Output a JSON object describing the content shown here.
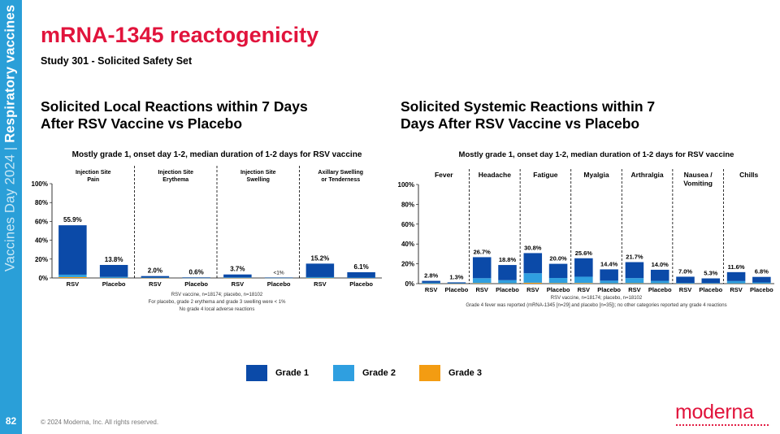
{
  "sidebar": {
    "event_bold": "Respiratory vaccines",
    "event_light": "Vaccines Day 2024 | ",
    "slide_number": "82"
  },
  "title": "mRNA-1345 reactogenicity",
  "subtitle": "Study 301 - Solicited Safety Set",
  "sections": {
    "left_title": "Solicited Local Reactions within 7 Days After RSV Vaccine vs Placebo",
    "right_title": "Solicited Systemic Reactions within 7 Days After RSV Vaccine vs Placebo"
  },
  "legend": [
    {
      "label": "Grade 1",
      "color": "#0b4aa8"
    },
    {
      "label": "Grade 2",
      "color": "#2f9fe0"
    },
    {
      "label": "Grade 3",
      "color": "#f39c12"
    }
  ],
  "copyright": "© 2024 Moderna, Inc. All rights reserved.",
  "logo": "moderna",
  "chart_data": [
    {
      "type": "bar",
      "title": "Mostly grade 1, onset day 1-2, median duration of 1-2 days for RSV vaccine",
      "ylim": [
        0,
        100
      ],
      "yticks": [
        "0%",
        "20%",
        "40%",
        "60%",
        "80%",
        "100%"
      ],
      "groups": [
        {
          "label": "Injection Site Pain",
          "categories": [
            "RSV",
            "Placebo"
          ]
        },
        {
          "label": "Injection Site Erythema",
          "categories": [
            "RSV",
            "Placebo"
          ]
        },
        {
          "label": "Injection Site Swelling",
          "categories": [
            "RSV",
            "Placebo"
          ]
        },
        {
          "label": "Axillary Swelling or Tenderness",
          "categories": [
            "RSV",
            "Placebo"
          ]
        }
      ],
      "totals": [
        55.9,
        13.8,
        2.0,
        0.6,
        3.7,
        0.5,
        15.2,
        6.1
      ],
      "bar_labels": [
        "55.9%",
        "13.8%",
        "2.0%",
        "0.6%",
        "3.7%",
        "<1%",
        "15.2%",
        "6.1%"
      ],
      "series": [
        {
          "name": "Grade 1",
          "values": [
            52.4,
            12.7,
            1.6,
            0.5,
            3.1,
            0.4,
            14.3,
            5.7
          ]
        },
        {
          "name": "Grade 2",
          "values": [
            2.6,
            1.0,
            0.3,
            0.1,
            0.5,
            0.1,
            0.8,
            0.4
          ]
        },
        {
          "name": "Grade 3",
          "values": [
            0.9,
            0.1,
            0.1,
            0.0,
            0.1,
            0.0,
            0.1,
            0.0
          ]
        }
      ],
      "footnotes": [
        "RSV vaccine, n=18174; placebo, n=18102",
        "For placebo, grade 2 erythema and grade 3 swelling were < 1%",
        "No grade 4 local adverse reactions"
      ]
    },
    {
      "type": "bar",
      "title": "Mostly grade 1, onset day 1-2, median duration of 1-2 days for RSV vaccine",
      "ylim": [
        0,
        100
      ],
      "yticks": [
        "0%",
        "20%",
        "40%",
        "60%",
        "80%",
        "100%"
      ],
      "groups": [
        {
          "label": "Fever",
          "categories": [
            "RSV",
            "Placebo"
          ]
        },
        {
          "label": "Headache",
          "categories": [
            "RSV",
            "Placebo"
          ]
        },
        {
          "label": "Fatigue",
          "categories": [
            "RSV",
            "Placebo"
          ]
        },
        {
          "label": "Myalgia",
          "categories": [
            "RSV",
            "Placebo"
          ]
        },
        {
          "label": "Arthralgia",
          "categories": [
            "RSV",
            "Placebo"
          ]
        },
        {
          "label": "Nausea / Vomiting",
          "categories": [
            "RSV",
            "Placebo"
          ]
        },
        {
          "label": "Chills",
          "categories": [
            "RSV",
            "Placebo"
          ]
        }
      ],
      "totals": [
        2.8,
        1.3,
        26.7,
        18.8,
        30.8,
        20.0,
        25.6,
        14.4,
        21.7,
        14.0,
        7.0,
        5.3,
        11.6,
        6.8
      ],
      "bar_labels": [
        "2.8%",
        "1.3%",
        "26.7%",
        "18.8%",
        "30.8%",
        "20.0%",
        "25.6%",
        "14.4%",
        "21.7%",
        "14.0%",
        "7.0%",
        "5.3%",
        "11.6%",
        "6.8%"
      ],
      "series": [
        {
          "name": "Grade 1",
          "values": [
            1.9,
            0.9,
            21.2,
            15.3,
            20.3,
            14.3,
            18.6,
            11.4,
            16.1,
            11.2,
            6.3,
            4.7,
            9.0,
            5.6
          ]
        },
        {
          "name": "Grade 2",
          "values": [
            0.8,
            0.3,
            5.0,
            3.2,
            9.6,
            5.2,
            6.4,
            2.7,
            5.2,
            2.5,
            0.6,
            0.5,
            2.4,
            1.1
          ]
        },
        {
          "name": "Grade 3",
          "values": [
            0.1,
            0.1,
            0.5,
            0.3,
            0.9,
            0.5,
            0.6,
            0.3,
            0.4,
            0.3,
            0.1,
            0.1,
            0.2,
            0.1
          ]
        }
      ],
      "footnotes": [
        "RSV vaccine, n=18174; placebo, n=18102",
        "Grade 4 fever was reported (mRNA-1345 [n=29] and placebo [n=35]); no other categories reported any grade 4 reactions"
      ]
    }
  ]
}
